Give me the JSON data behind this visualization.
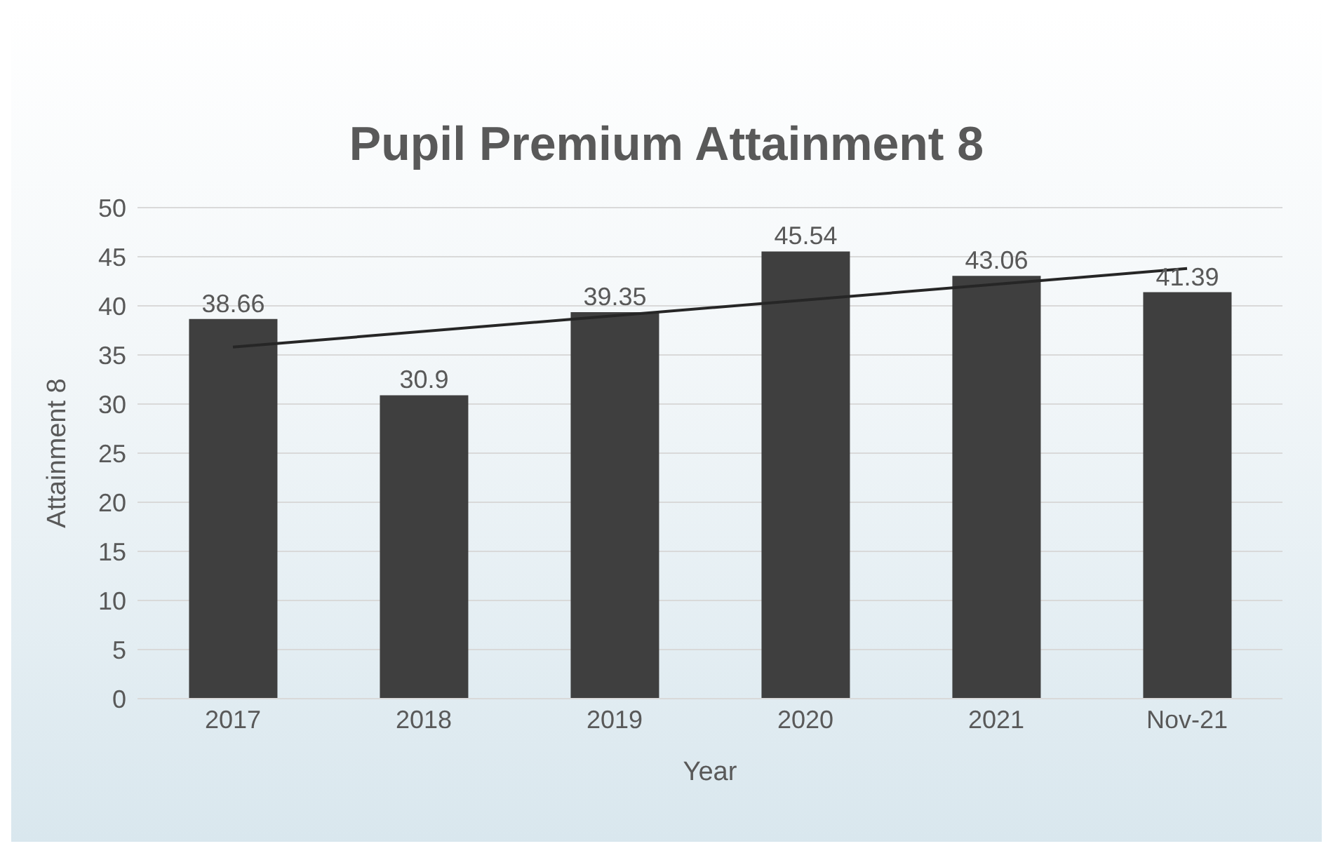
{
  "chart_data": {
    "type": "bar",
    "title": "Pupil Premium Attainment 8",
    "xlabel": "Year",
    "ylabel": "Attainment 8",
    "categories": [
      "2017",
      "2018",
      "2019",
      "2020",
      "2021",
      "Nov-21"
    ],
    "series": [
      {
        "color": "#3f3f3f",
        "values": [
          38.66,
          30.9,
          39.35,
          45.54,
          43.06,
          41.39
        ],
        "value_labels": [
          "38.66",
          "30.9",
          "39.35",
          "45.54",
          "43.06",
          "41.39"
        ]
      },
      {
        "type": "line",
        "color": "#262626",
        "values": [
          35.8,
          null,
          null,
          null,
          null,
          43.8
        ]
      }
    ],
    "ylim": [
      0,
      50
    ],
    "yticks": [
      0,
      5,
      10,
      15,
      20,
      25,
      30,
      35,
      40,
      45,
      50
    ],
    "grid": "y",
    "legend": false
  }
}
